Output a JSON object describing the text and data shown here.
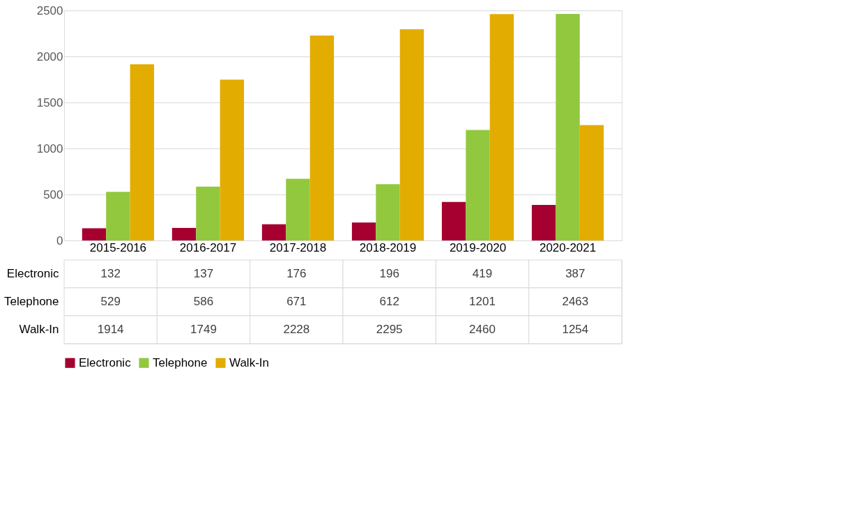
{
  "chart_data": {
    "type": "bar",
    "categories": [
      "2015-2016",
      "2016-2017",
      "2017-2018",
      "2018-2019",
      "2019-2020",
      "2020-2021"
    ],
    "series": [
      {
        "name": "Electronic",
        "color": "#a5002f",
        "values": [
          132,
          137,
          176,
          196,
          419,
          387
        ]
      },
      {
        "name": "Telephone",
        "color": "#92c83e",
        "values": [
          529,
          586,
          671,
          612,
          1201,
          2463
        ]
      },
      {
        "name": "Walk-In",
        "color": "#e3ac00",
        "values": [
          1914,
          1749,
          2228,
          2295,
          2460,
          1254
        ]
      }
    ],
    "ylim": [
      0,
      2500
    ],
    "yticks": [
      0,
      500,
      1000,
      1500,
      2000,
      2500
    ],
    "grid": "y",
    "legend": "bottom",
    "data_labels": true
  }
}
